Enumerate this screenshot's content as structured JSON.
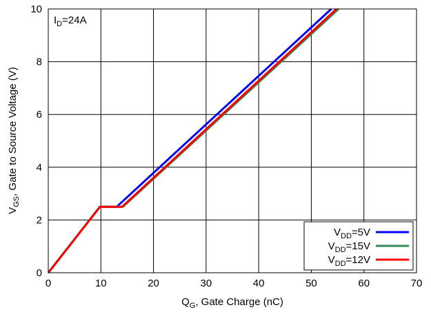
{
  "chart_data": {
    "type": "line",
    "xlabel": {
      "main": "Q",
      "sub": "G",
      "rest": ", Gate Charge (nC)"
    },
    "ylabel": {
      "main": "V",
      "sub": "GS",
      "rest": ", Gate to Source Voltage (V)"
    },
    "xlim": [
      0,
      70
    ],
    "ylim": [
      0,
      10
    ],
    "xticks": [
      "0",
      "10",
      "20",
      "30",
      "40",
      "50",
      "60",
      "70"
    ],
    "yticks": [
      "0",
      "2",
      "4",
      "6",
      "8",
      "10"
    ],
    "grid": true,
    "legend_position": "bottom-right",
    "annotation": {
      "main": "I",
      "sub": "D",
      "rest": "=24A"
    },
    "series": [
      {
        "name": {
          "main": "V",
          "sub": "DD",
          "rest": "=5V"
        },
        "color": "#0000ff",
        "x": [
          0,
          9.8,
          13.0,
          53.8
        ],
        "y": [
          0,
          2.5,
          2.5,
          10
        ]
      },
      {
        "name": {
          "main": "V",
          "sub": "DD",
          "rest": "=15V"
        },
        "color": "#2e8b57",
        "x": [
          0,
          9.8,
          14.2,
          55.2
        ],
        "y": [
          0,
          2.5,
          2.5,
          10
        ]
      },
      {
        "name": {
          "main": "V",
          "sub": "DD",
          "rest": "=12V"
        },
        "color": "#ff0000",
        "x": [
          0,
          9.8,
          14.0,
          54.8
        ],
        "y": [
          0,
          2.5,
          2.5,
          10
        ]
      }
    ]
  }
}
